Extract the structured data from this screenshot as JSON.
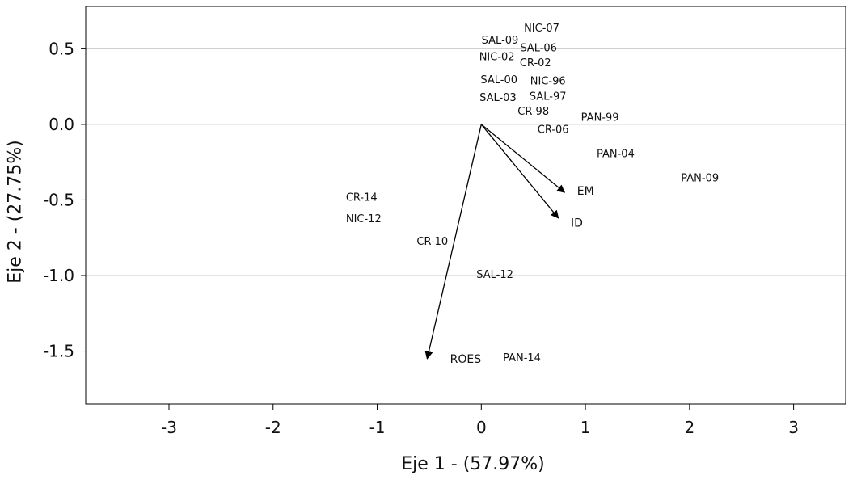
{
  "chart_data": {
    "type": "scatter",
    "title": "",
    "xlabel": "Eje 1 - (57.97%)",
    "ylabel": "Eje 2 - (27.75%)",
    "xlim": [
      -3.8,
      3.5
    ],
    "ylim": [
      -1.85,
      0.78
    ],
    "xticks": [
      -3,
      -2,
      -1,
      0,
      1,
      2,
      3
    ],
    "xtick_labels": [
      "-3",
      "-2",
      "-1",
      "0",
      "1",
      "2",
      "3"
    ],
    "yticks": [
      0.5,
      0.0,
      -0.5,
      -1.0,
      -1.5
    ],
    "ytick_labels": [
      "0.5",
      "0.0",
      "-0.5",
      "-1.0",
      "-1.5"
    ],
    "grid": "horizontal",
    "points": [
      {
        "label": "NIC-07",
        "x": 0.58,
        "y": 0.64
      },
      {
        "label": "SAL-09",
        "x": 0.18,
        "y": 0.56
      },
      {
        "label": "SAL-06",
        "x": 0.55,
        "y": 0.51
      },
      {
        "label": "NIC-02",
        "x": 0.15,
        "y": 0.45
      },
      {
        "label": "CR-02",
        "x": 0.52,
        "y": 0.41
      },
      {
        "label": "SAL-00",
        "x": 0.17,
        "y": 0.3
      },
      {
        "label": "NIC-96",
        "x": 0.64,
        "y": 0.29
      },
      {
        "label": "SAL-97",
        "x": 0.64,
        "y": 0.19
      },
      {
        "label": "SAL-03",
        "x": 0.16,
        "y": 0.18
      },
      {
        "label": "CR-98",
        "x": 0.5,
        "y": 0.09
      },
      {
        "label": "PAN-99",
        "x": 1.14,
        "y": 0.05
      },
      {
        "label": "CR-06",
        "x": 0.69,
        "y": -0.03
      },
      {
        "label": "PAN-04",
        "x": 1.29,
        "y": -0.19
      },
      {
        "label": "PAN-09",
        "x": 2.1,
        "y": -0.35
      },
      {
        "label": "CR-14",
        "x": -1.15,
        "y": -0.48
      },
      {
        "label": "NIC-12",
        "x": -1.13,
        "y": -0.62
      },
      {
        "label": "CR-10",
        "x": -0.47,
        "y": -0.77
      },
      {
        "label": "SAL-12",
        "x": 0.13,
        "y": -0.99
      },
      {
        "label": "PAN-14",
        "x": 0.39,
        "y": -1.54
      }
    ],
    "vectors": [
      {
        "label": "EM",
        "x": 0.8,
        "y": -0.45,
        "label_x": 0.92,
        "label_y": -0.44
      },
      {
        "label": "ID",
        "x": 0.74,
        "y": -0.62,
        "label_x": 0.86,
        "label_y": -0.65
      },
      {
        "label": "ROES",
        "x": -0.52,
        "y": -1.55,
        "label_x": -0.3,
        "label_y": -1.55
      }
    ],
    "vector_color": "#000000",
    "grid_color": "#c8c8c8"
  }
}
